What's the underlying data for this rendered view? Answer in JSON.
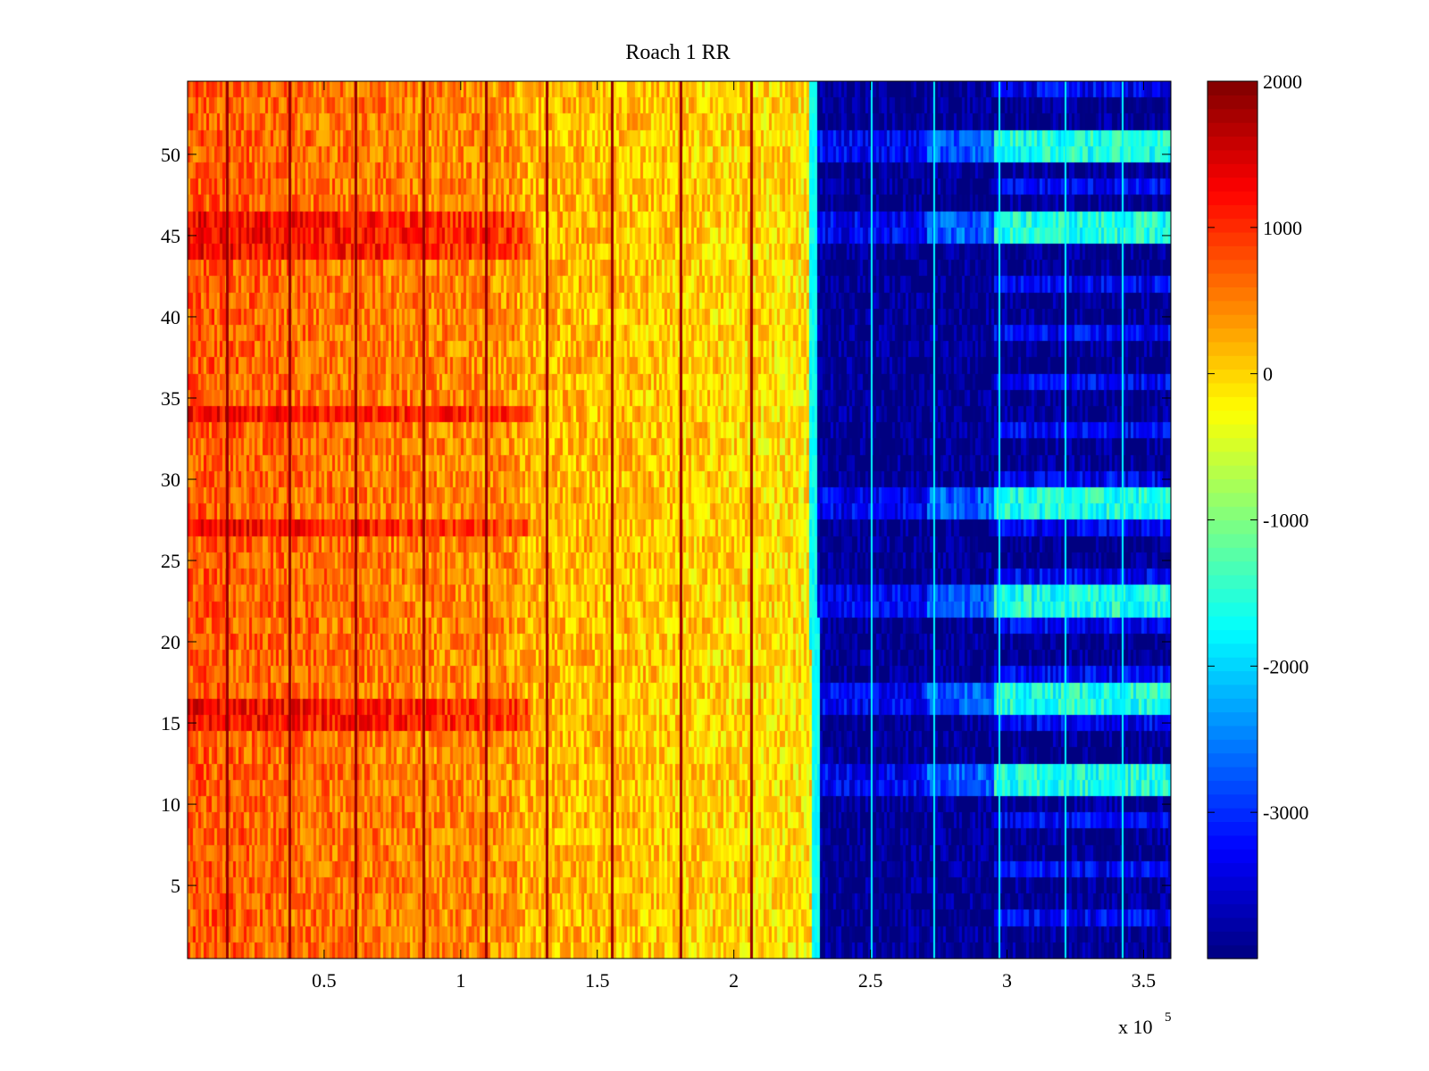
{
  "chart_data": {
    "type": "heatmap",
    "title": "Roach 1 RR",
    "xlabel": "",
    "ylabel": "",
    "colormap": "jet",
    "x_exponent_label": {
      "base": "x 10",
      "exponent": "5"
    },
    "xlim": [
      0,
      3.6
    ],
    "ylim": [
      0.5,
      54.5
    ],
    "rows": 54,
    "x_ticks": [
      0.5,
      1,
      1.5,
      2,
      2.5,
      3,
      3.5
    ],
    "x_tick_labels": [
      "0.5",
      "1",
      "1.5",
      "2",
      "2.5",
      "3",
      "3.5"
    ],
    "y_ticks": [
      5,
      10,
      15,
      20,
      25,
      30,
      35,
      40,
      45,
      50
    ],
    "y_tick_labels": [
      "5",
      "10",
      "15",
      "20",
      "25",
      "30",
      "35",
      "40",
      "45",
      "50"
    ],
    "colorbar": {
      "clim": [
        -4000,
        2000
      ],
      "ticks": [
        2000,
        1000,
        0,
        -1000,
        -2000,
        -3000
      ],
      "tick_labels": [
        "2000",
        "1000",
        "0",
        "-1000",
        "-2000",
        "-3000"
      ]
    },
    "regions": [
      {
        "x_range": [
          0,
          2.28
        ],
        "level_min": -300,
        "level_max": 1500,
        "description": "high values (orange/red)"
      },
      {
        "x_range": [
          2.28,
          3.6
        ],
        "level_min": -4000,
        "level_max": -1000,
        "description": "low values (blue)"
      }
    ],
    "high_region_dark_columns_x": [
      0.14,
      0.37,
      0.61,
      0.86,
      1.09,
      1.31,
      1.55,
      1.8,
      2.06
    ],
    "low_region_bright_columns_x": [
      2.5,
      2.73,
      2.97,
      3.21,
      3.42
    ],
    "warm_rows": [
      15,
      16,
      44,
      45,
      46,
      34,
      27
    ],
    "bright_rows": [
      11,
      12,
      16,
      17,
      22,
      23,
      28,
      29,
      45,
      46,
      50,
      51
    ]
  }
}
